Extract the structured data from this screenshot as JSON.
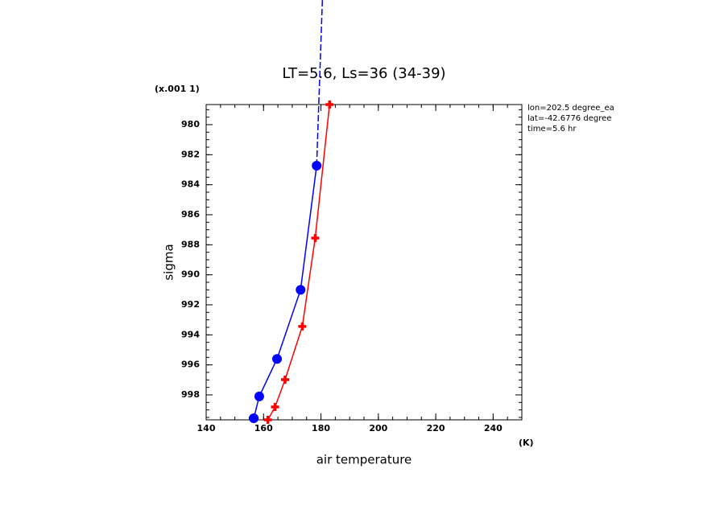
{
  "chart_data": {
    "type": "line",
    "title": "LT=5.6, Ls=36 (34-39)",
    "y_unit_label": "(x.001 1)",
    "y_label": "sigma",
    "x_label": "air temperature",
    "x_unit_label": "(K)",
    "annotations": [
      "lon=202.5 degree_ea",
      "lat=-42.6776 degree",
      "time=5.6 hr"
    ],
    "xlim": [
      140,
      250
    ],
    "xticks": [
      140,
      160,
      180,
      200,
      220,
      240
    ],
    "xminor_step": 5,
    "ylim": [
      978.66,
      999.66
    ],
    "yticks": [
      980,
      982,
      984,
      986,
      988,
      990,
      992,
      994,
      996,
      998
    ],
    "yminor_step": 0.5,
    "y_inverted": true,
    "series": [
      {
        "color": "#ff0000",
        "marker": "plus",
        "dashed": false,
        "x": [
          183,
          178,
          173.5,
          167.5,
          164,
          161.5
        ],
        "values": [
          978.66,
          987.55,
          993.44,
          996.98,
          998.8,
          999.66
        ]
      },
      {
        "color": "#0000ff",
        "marker": "circle",
        "dashed": false,
        "x": [
          178.5,
          172.9,
          164.7,
          158.5,
          156.6
        ],
        "values": [
          982.73,
          991.0,
          995.6,
          998.1,
          999.55
        ]
      },
      {
        "color": "#0000ff",
        "marker": "none",
        "dashed": true,
        "x": [
          178.5,
          180.5
        ],
        "values": [
          982.73,
          971.7
        ]
      }
    ]
  }
}
